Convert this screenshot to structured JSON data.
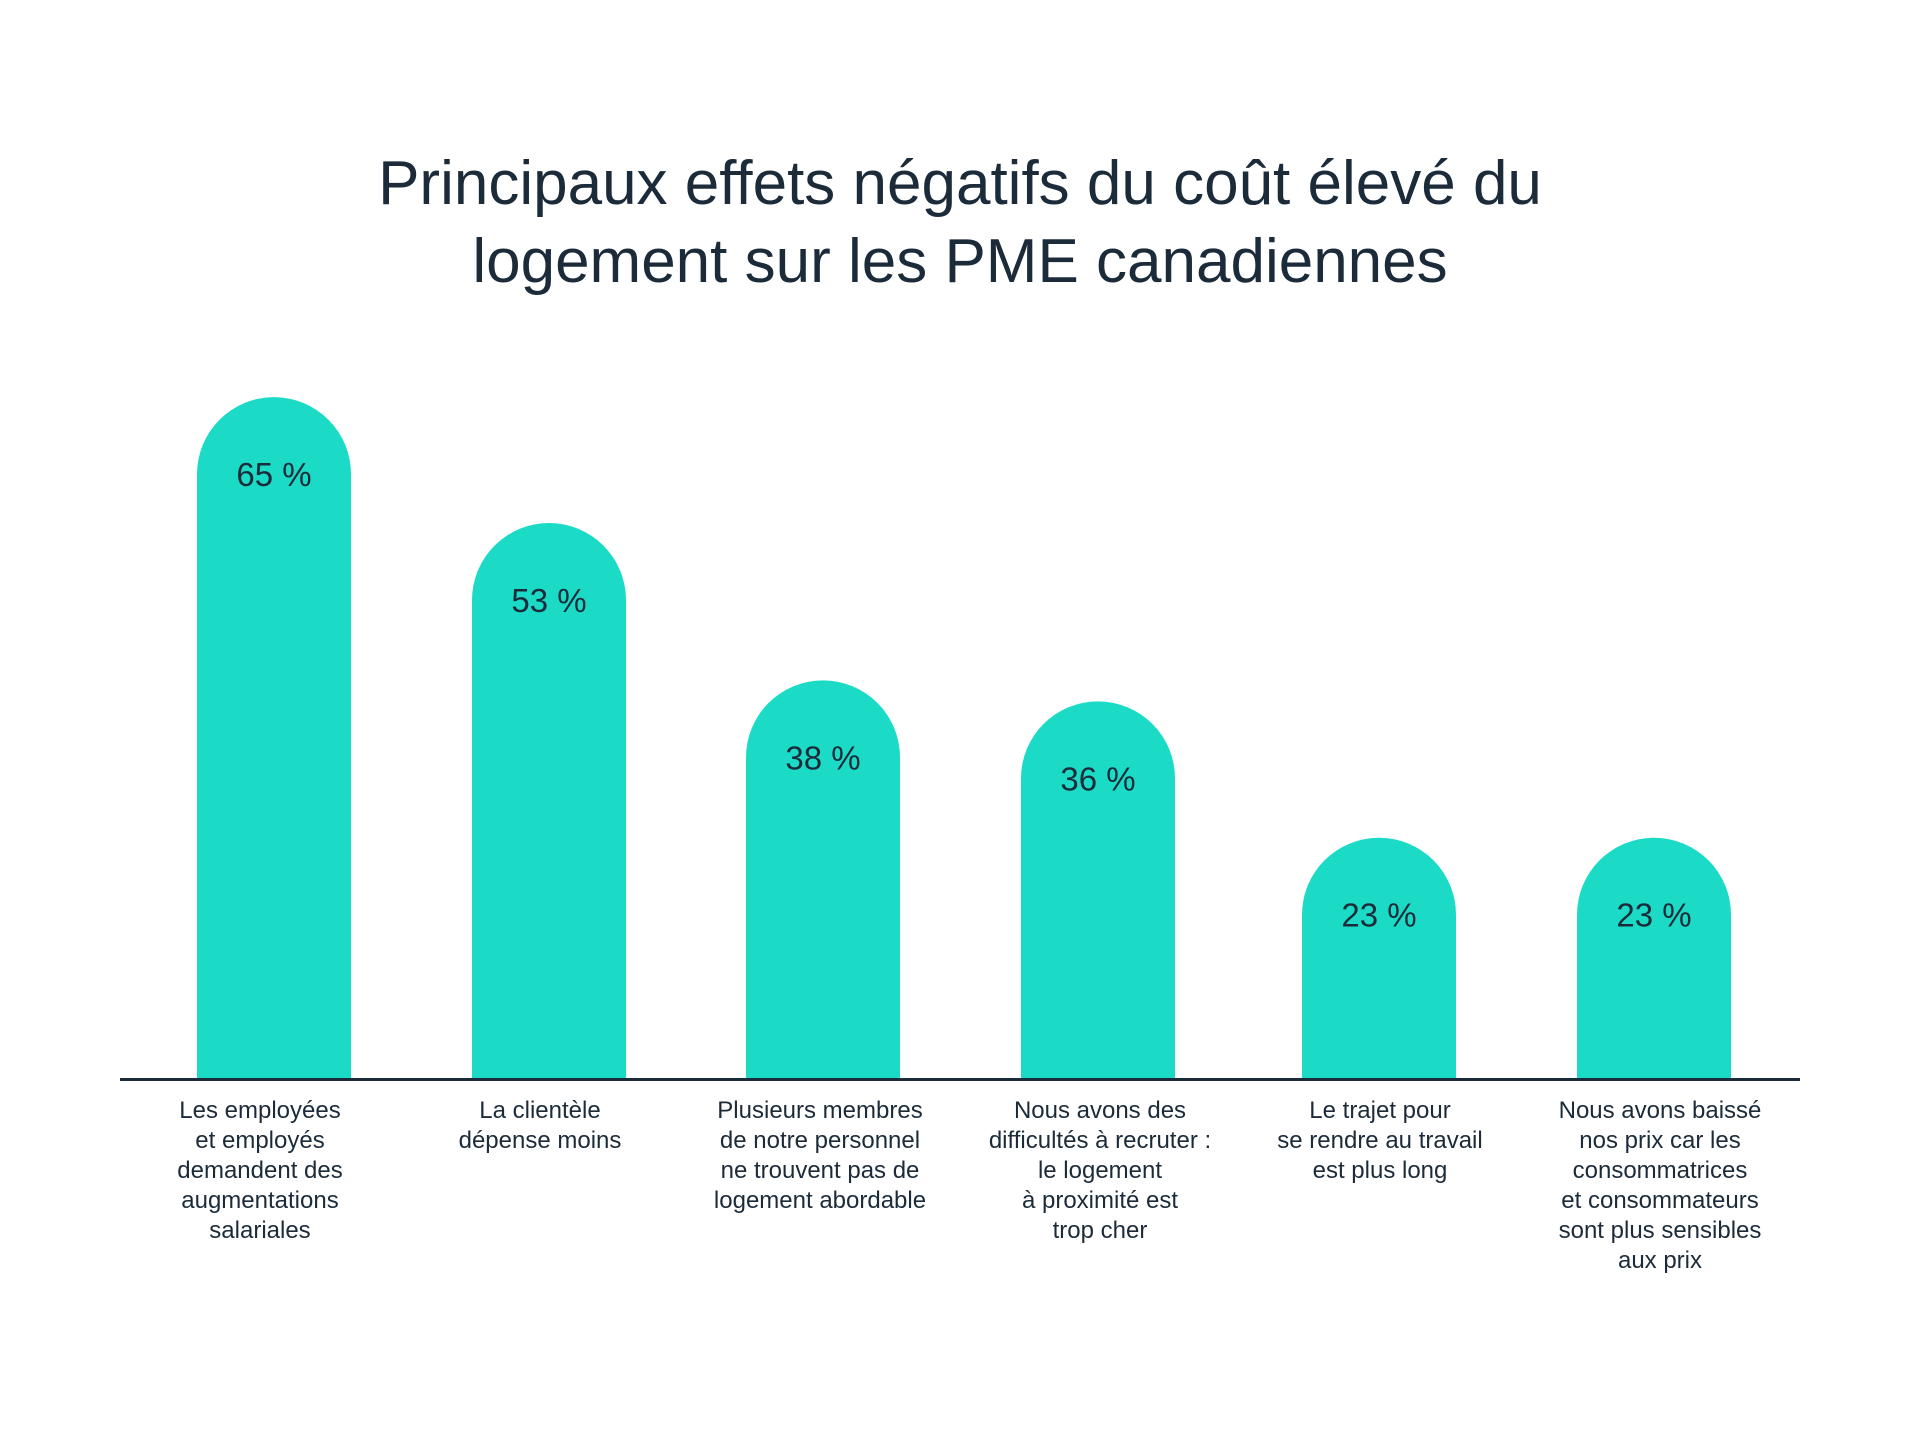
{
  "chart_data": {
    "type": "bar",
    "title_lines": [
      "Principaux effets négatifs du coût élevé du",
      "logement sur les PME canadiennes"
    ],
    "categories": [
      [
        "Les employées",
        "et employés",
        "demandent des",
        "augmentations",
        "salariales"
      ],
      [
        "La clientèle",
        "dépense moins"
      ],
      [
        "Plusieurs membres",
        "de notre personnel",
        "ne trouvent pas de",
        "logement abordable"
      ],
      [
        "Nous avons des",
        "difficultés à recruter :",
        "le logement",
        "à proximité est",
        "trop cher"
      ],
      [
        "Le trajet pour",
        "se rendre au travail",
        "est plus long"
      ],
      [
        "Nous avons baissé",
        "nos prix car les",
        "consommatrices",
        "et consommateurs",
        "sont plus sensibles",
        "aux prix"
      ]
    ],
    "values": [
      65,
      53,
      38,
      36,
      23,
      23
    ],
    "value_labels": [
      "65 %",
      "53 %",
      "38 %",
      "36 %",
      "23 %",
      "23 %"
    ],
    "unit": "%",
    "ylim": [
      0,
      70
    ],
    "xlabel": "",
    "ylabel": "",
    "grid": false,
    "colors": {
      "bar": "#1BDBC6",
      "text": "#1c2b3a",
      "axis": "#1c2b3a"
    }
  }
}
